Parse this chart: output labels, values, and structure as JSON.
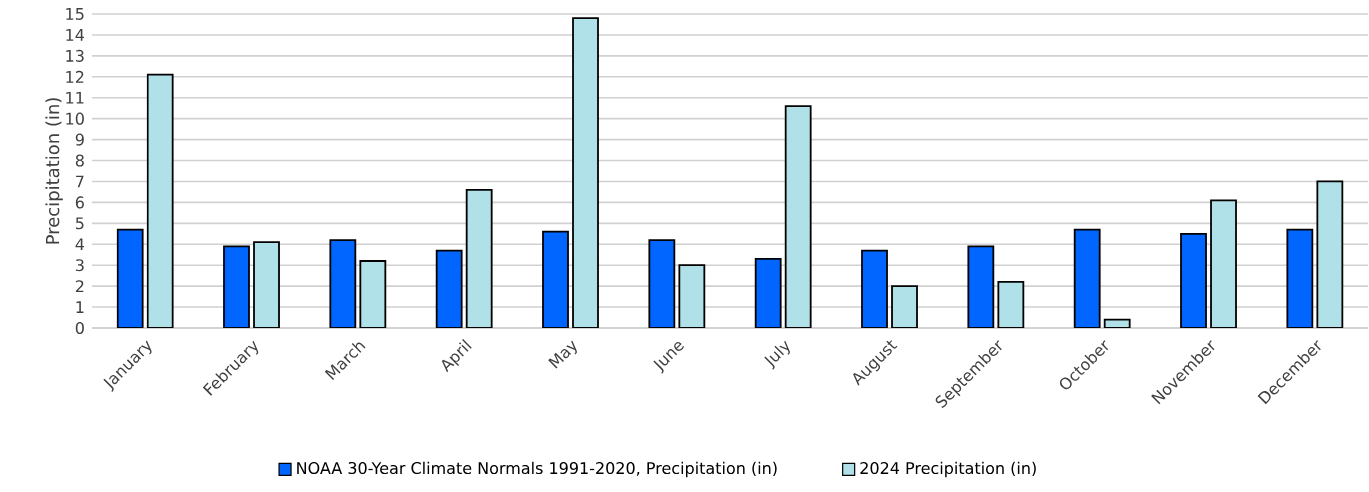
{
  "chart_data": {
    "type": "bar",
    "ylabel": "Precipitation (in)",
    "categories": [
      "January",
      "February",
      "March",
      "April",
      "May",
      "June",
      "July",
      "August",
      "September",
      "October",
      "November",
      "December"
    ],
    "series": [
      {
        "name": "NOAA 30-Year Climate Normals 1991-2020, Precipitation (in)",
        "color": "#0066ff",
        "values": [
          4.7,
          3.9,
          4.2,
          3.7,
          4.6,
          4.2,
          3.3,
          3.7,
          3.9,
          4.7,
          4.5,
          4.7
        ]
      },
      {
        "name": "2024 Precipitation (in)",
        "color": "#b0e0e8",
        "values": [
          12.1,
          4.1,
          3.2,
          6.6,
          14.8,
          3.0,
          10.6,
          2.0,
          2.2,
          0.4,
          6.1,
          7.0
        ]
      }
    ],
    "ylim": [
      0,
      15
    ],
    "yticks": [
      0,
      1,
      2,
      3,
      4,
      5,
      6,
      7,
      8,
      9,
      10,
      11,
      12,
      13,
      14,
      15
    ],
    "grid": "y",
    "legend": "bottom"
  }
}
